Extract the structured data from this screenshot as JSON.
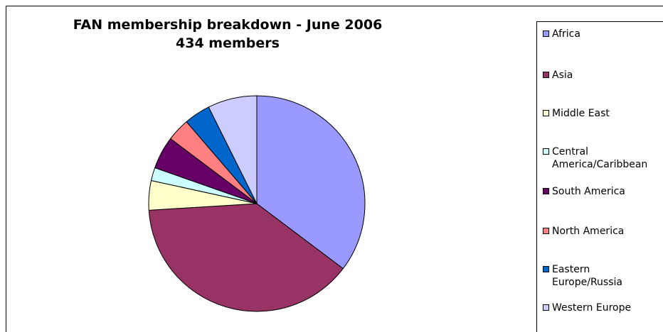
{
  "chart_data": {
    "type": "pie",
    "title": "FAN membership breakdown - June 2006",
    "subtitle": "434 members",
    "legend_position": "right",
    "categories": [
      "Africa",
      "Asia",
      "Middle East",
      "Central America/Caribbean",
      "South America",
      "North America",
      "Eastern Europe/Russia",
      "Western Europe"
    ],
    "legend_labels": [
      "Africa",
      "Asia",
      "Middle East",
      "Central\nAmerica/Caribbean",
      "South America",
      "North America",
      "Eastern\nEurope/Russia",
      "Western Europe"
    ],
    "values": [
      36.0,
      39.5,
      4.5,
      2.0,
      5.0,
      3.5,
      4.0,
      7.5
    ],
    "colors": [
      "#9999FF",
      "#993366",
      "#FFFFCC",
      "#CCFFFF",
      "#660066",
      "#FF8080",
      "#0066CC",
      "#CCCCFF"
    ]
  }
}
